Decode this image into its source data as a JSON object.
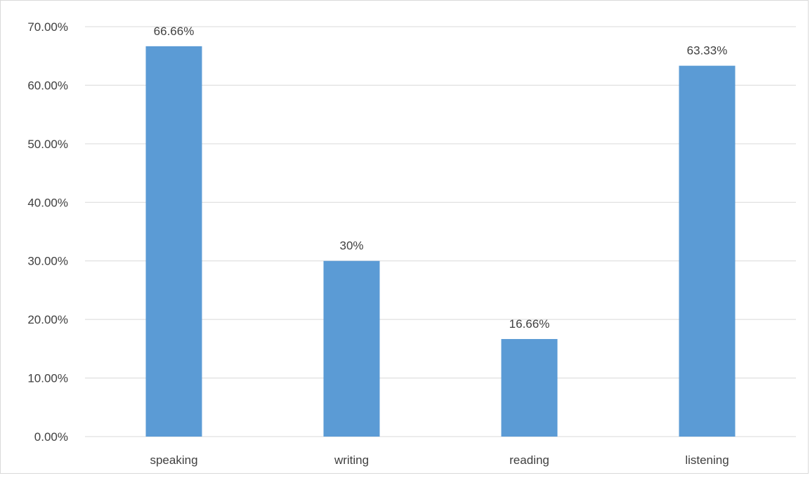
{
  "chart_data": {
    "type": "bar",
    "categories": [
      "speaking",
      "writing",
      "reading",
      "listening"
    ],
    "values": [
      66.66,
      30,
      16.66,
      63.33
    ],
    "data_labels": [
      "66.66%",
      "30%",
      "16.66%",
      "63.33%"
    ],
    "y_tick_labels": [
      "0.00%",
      "10.00%",
      "20.00%",
      "30.00%",
      "40.00%",
      "50.00%",
      "60.00%",
      "70.00%"
    ],
    "ylim": [
      0,
      70
    ],
    "y_step": 10,
    "grid": true,
    "legend": "none",
    "title": "",
    "xlabel": "",
    "ylabel": "",
    "bar_color": "#5b9bd5",
    "grid_color": "#d9d9d9",
    "text_color": "#404040"
  }
}
